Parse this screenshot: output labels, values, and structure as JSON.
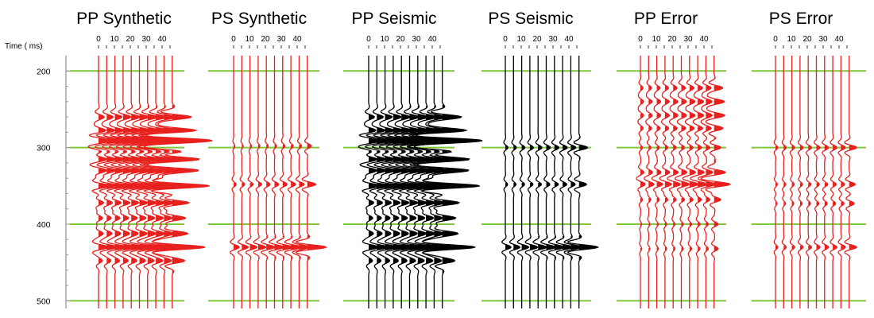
{
  "chart_data": {
    "type": "line",
    "ylabel": "Time ( ms)",
    "ylim": [
      180,
      510
    ],
    "y_ticks": [
      200,
      300,
      400,
      500
    ],
    "x_ticks": [
      0,
      10,
      20,
      30,
      40
    ],
    "x_tick_labels": [
      "0",
      "10",
      "20",
      "30",
      "40"
    ],
    "grid_horizontal": [
      200,
      300,
      400,
      500
    ],
    "traces_per_panel": 10,
    "colors": {
      "red": "#e8201e",
      "black": "#000000",
      "grid": "#7ec63c"
    },
    "panels": [
      {
        "title": "PP Synthetic",
        "color": "red",
        "events": [
          {
            "t": 260,
            "a": 0.55
          },
          {
            "t": 278,
            "a": 0.6
          },
          {
            "t": 290,
            "a": 0.9
          },
          {
            "t": 300,
            "a": -0.8
          },
          {
            "t": 315,
            "a": 0.8
          },
          {
            "t": 330,
            "a": 0.7
          },
          {
            "t": 350,
            "a": 1.1
          },
          {
            "t": 372,
            "a": 0.5
          },
          {
            "t": 392,
            "a": 0.4
          },
          {
            "t": 412,
            "a": 0.45
          },
          {
            "t": 430,
            "a": 0.95
          },
          {
            "t": 448,
            "a": 0.35
          }
        ]
      },
      {
        "title": "PS Synthetic",
        "color": "red",
        "events": [
          {
            "t": 298,
            "a": 0.12
          },
          {
            "t": 348,
            "a": 0.25
          },
          {
            "t": 430,
            "a": 0.55
          }
        ]
      },
      {
        "title": "PP Seismic",
        "color": "black",
        "events": [
          {
            "t": 260,
            "a": 0.55
          },
          {
            "t": 278,
            "a": 0.6
          },
          {
            "t": 290,
            "a": 0.9
          },
          {
            "t": 300,
            "a": -0.8
          },
          {
            "t": 315,
            "a": 0.8
          },
          {
            "t": 330,
            "a": 0.7
          },
          {
            "t": 350,
            "a": 1.1
          },
          {
            "t": 372,
            "a": 0.5
          },
          {
            "t": 392,
            "a": 0.4
          },
          {
            "t": 412,
            "a": 0.45
          },
          {
            "t": 430,
            "a": 0.95
          },
          {
            "t": 448,
            "a": 0.35
          }
        ]
      },
      {
        "title": "PS Seismic",
        "color": "black",
        "events": [
          {
            "t": 300,
            "a": 0.25
          },
          {
            "t": 348,
            "a": 0.22
          },
          {
            "t": 430,
            "a": 0.55
          }
        ]
      },
      {
        "title": "PP Error",
        "color": "red",
        "events": [
          {
            "t": 222,
            "a": 0.25
          },
          {
            "t": 240,
            "a": 0.3
          },
          {
            "t": 258,
            "a": 0.3
          },
          {
            "t": 275,
            "a": 0.25
          },
          {
            "t": 300,
            "a": 0.2
          },
          {
            "t": 332,
            "a": 0.3
          },
          {
            "t": 348,
            "a": 0.45
          },
          {
            "t": 368,
            "a": 0.2
          },
          {
            "t": 400,
            "a": 0.12
          },
          {
            "t": 432,
            "a": 0.12
          }
        ]
      },
      {
        "title": "PS Error",
        "color": "red",
        "events": [
          {
            "t": 300,
            "a": 0.22
          },
          {
            "t": 348,
            "a": 0.18
          },
          {
            "t": 373,
            "a": 0.15
          },
          {
            "t": 430,
            "a": 0.22
          }
        ]
      }
    ]
  }
}
